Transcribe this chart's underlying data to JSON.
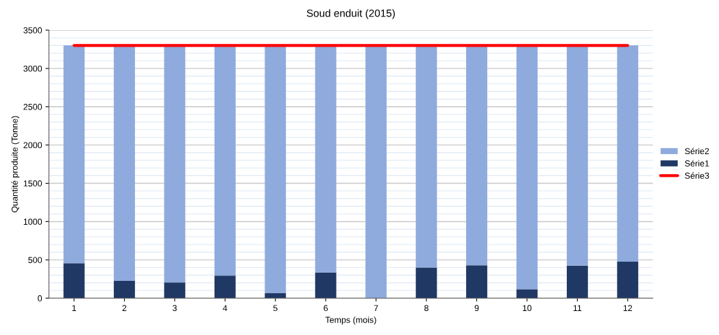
{
  "chart_data": {
    "type": "bar",
    "title": "Soud enduit (2015)",
    "xlabel": "Temps (mois)",
    "ylabel": "Quantité produite (Tonne)",
    "categories": [
      "1",
      "2",
      "3",
      "4",
      "5",
      "6",
      "7",
      "8",
      "9",
      "10",
      "11",
      "12"
    ],
    "stacked": true,
    "series": [
      {
        "name": "Série1",
        "color": "#203864",
        "values": [
          455,
          225,
          205,
          295,
          65,
          335,
          0,
          400,
          430,
          115,
          425,
          475
        ]
      },
      {
        "name": "Série2",
        "color": "#8faadc",
        "values": [
          2845,
          3075,
          3095,
          3005,
          3235,
          2965,
          3300,
          2900,
          2870,
          3185,
          2875,
          2825
        ]
      },
      {
        "name": "Série3",
        "type": "line",
        "color": "#ff0000",
        "values": [
          3300,
          3300,
          3300,
          3300,
          3300,
          3300,
          3300,
          3300,
          3300,
          3300,
          3300,
          3300
        ]
      }
    ],
    "ylim": [
      0,
      3500
    ],
    "yticks": [
      0,
      500,
      1000,
      1500,
      2000,
      2500,
      3000,
      3500
    ],
    "grid": "y",
    "legend": "right",
    "marker": "none",
    "line_style": "solid"
  }
}
